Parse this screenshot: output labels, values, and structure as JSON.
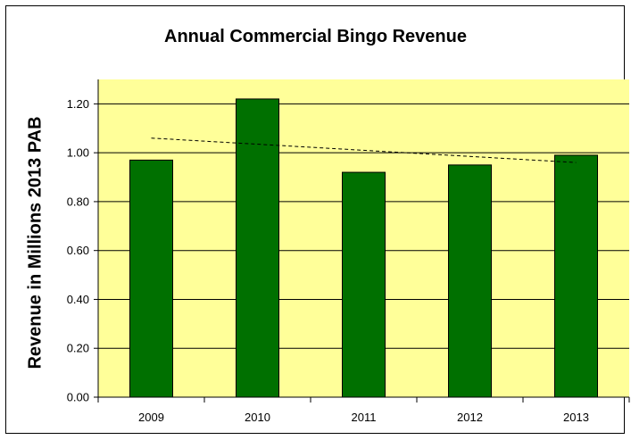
{
  "chart_data": {
    "type": "bar",
    "title": "Annual Commercial Bingo Revenue",
    "xlabel": "",
    "ylabel": "Revenue in Millions 2013 PAB",
    "categories": [
      "2009",
      "2010",
      "2011",
      "2012",
      "2013"
    ],
    "values": [
      0.97,
      1.22,
      0.92,
      0.95,
      0.99
    ],
    "ylim": [
      0,
      1.3
    ],
    "yticks": [
      "0.00",
      "0.20",
      "0.40",
      "0.60",
      "0.80",
      "1.00",
      "1.20"
    ],
    "trendline": {
      "style": "dashed",
      "start": 1.06,
      "end": 0.96
    },
    "grid": true,
    "legend": "none",
    "colors": {
      "bar": "#007000",
      "plot_background": "#ffff99",
      "gridline": "#000000"
    }
  }
}
